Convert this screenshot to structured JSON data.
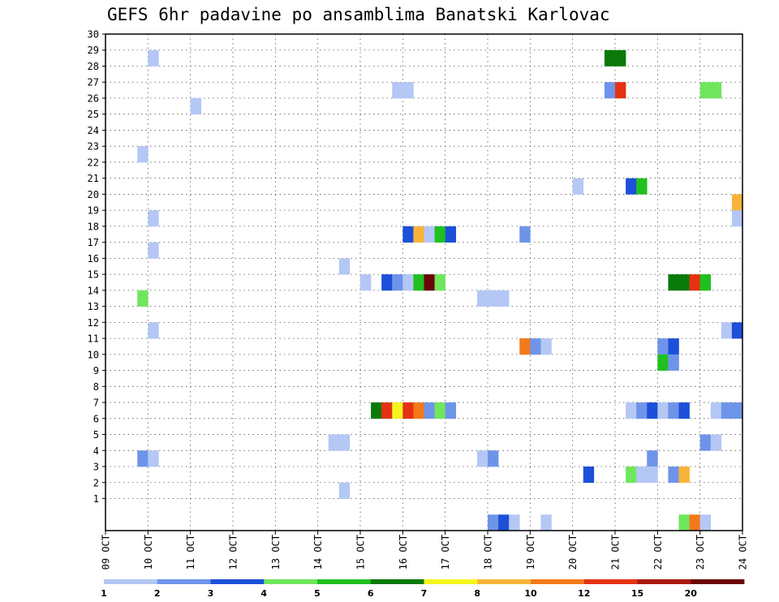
{
  "chart_data": {
    "type": "heatmap",
    "title": "GEFS 6hr padavine po ansamblima Banatski Karlovac",
    "xlabel": "",
    "ylabel": "",
    "x_tick_labels": [
      "09 OCT",
      "10 OCT",
      "11 OCT",
      "12 OCT",
      "13 OCT",
      "14 OCT",
      "15 OCT",
      "16 OCT",
      "17 OCT",
      "18 OCT",
      "19 OCT",
      "20 OCT",
      "21 OCT",
      "22 OCT",
      "23 OCT",
      "24 OCT"
    ],
    "xlim": [
      0,
      60
    ],
    "ylim": [
      0,
      30
    ],
    "y_tick_labels": [
      1,
      2,
      3,
      4,
      5,
      6,
      7,
      8,
      9,
      10,
      11,
      12,
      13,
      14,
      15,
      16,
      17,
      18,
      19,
      20,
      21,
      22,
      23,
      24,
      25,
      26,
      27,
      28,
      29,
      30
    ],
    "grid": true,
    "legend": {
      "position": "bottom",
      "thresholds": [
        1,
        2,
        3,
        4,
        5,
        6,
        7,
        8,
        10,
        12,
        15,
        20
      ],
      "colors": [
        "#b4c7f5",
        "#6e94ea",
        "#1c50d8",
        "#6fe65c",
        "#20c020",
        "#0a7a0a",
        "#f5f51e",
        "#f8b43a",
        "#f27a1a",
        "#e43212",
        "#aa1a12",
        "#6a0606"
      ]
    },
    "cells": [
      {
        "x": 4,
        "y": 30,
        "c": 0
      },
      {
        "x": 47,
        "y": 30,
        "c": 5
      },
      {
        "x": 48,
        "y": 30,
        "c": 5
      },
      {
        "x": 27,
        "y": 28,
        "c": 0
      },
      {
        "x": 28,
        "y": 28,
        "c": 0
      },
      {
        "x": 47,
        "y": 28,
        "c": 1
      },
      {
        "x": 48,
        "y": 28,
        "c": 9
      },
      {
        "x": 56,
        "y": 28,
        "c": 3
      },
      {
        "x": 57,
        "y": 28,
        "c": 3
      },
      {
        "x": 8,
        "y": 27,
        "c": 0
      },
      {
        "x": 3,
        "y": 24,
        "c": 0
      },
      {
        "x": 44,
        "y": 22,
        "c": 0
      },
      {
        "x": 49,
        "y": 22,
        "c": 2
      },
      {
        "x": 50,
        "y": 22,
        "c": 4
      },
      {
        "x": 59,
        "y": 21,
        "c": 7
      },
      {
        "x": 4,
        "y": 20,
        "c": 0
      },
      {
        "x": 59,
        "y": 20,
        "c": 0
      },
      {
        "x": 28,
        "y": 19,
        "c": 2
      },
      {
        "x": 29,
        "y": 19,
        "c": 7
      },
      {
        "x": 30,
        "y": 19,
        "c": 0
      },
      {
        "x": 31,
        "y": 19,
        "c": 4
      },
      {
        "x": 32,
        "y": 19,
        "c": 2
      },
      {
        "x": 39,
        "y": 19,
        "c": 1
      },
      {
        "x": 4,
        "y": 18,
        "c": 0
      },
      {
        "x": 22,
        "y": 17,
        "c": 0
      },
      {
        "x": 24,
        "y": 16,
        "c": 0
      },
      {
        "x": 26,
        "y": 16,
        "c": 2
      },
      {
        "x": 27,
        "y": 16,
        "c": 1
      },
      {
        "x": 28,
        "y": 16,
        "c": 0
      },
      {
        "x": 29,
        "y": 16,
        "c": 4
      },
      {
        "x": 30,
        "y": 16,
        "c": 11
      },
      {
        "x": 31,
        "y": 16,
        "c": 3
      },
      {
        "x": 53,
        "y": 16,
        "c": 5
      },
      {
        "x": 54,
        "y": 16,
        "c": 5
      },
      {
        "x": 55,
        "y": 16,
        "c": 9
      },
      {
        "x": 56,
        "y": 16,
        "c": 4
      },
      {
        "x": 3,
        "y": 15,
        "c": 3
      },
      {
        "x": 35,
        "y": 15,
        "c": 0
      },
      {
        "x": 36,
        "y": 15,
        "c": 0
      },
      {
        "x": 37,
        "y": 15,
        "c": 0
      },
      {
        "x": 4,
        "y": 13,
        "c": 0
      },
      {
        "x": 58,
        "y": 13,
        "c": 0
      },
      {
        "x": 59,
        "y": 13,
        "c": 2
      },
      {
        "x": 39,
        "y": 12,
        "c": 8
      },
      {
        "x": 40,
        "y": 12,
        "c": 1
      },
      {
        "x": 41,
        "y": 12,
        "c": 0
      },
      {
        "x": 52,
        "y": 12,
        "c": 1
      },
      {
        "x": 53,
        "y": 12,
        "c": 2
      },
      {
        "x": 52,
        "y": 11,
        "c": 4
      },
      {
        "x": 53,
        "y": 11,
        "c": 1
      },
      {
        "x": 53,
        "y": 8,
        "c": 0
      },
      {
        "x": 25,
        "y": 8,
        "c": 5
      },
      {
        "x": 26,
        "y": 8,
        "c": 9
      },
      {
        "x": 27,
        "y": 8,
        "c": 6
      },
      {
        "x": 28,
        "y": 8,
        "c": 9
      },
      {
        "x": 29,
        "y": 8,
        "c": 8
      },
      {
        "x": 30,
        "y": 8,
        "c": 1
      },
      {
        "x": 31,
        "y": 8,
        "c": 3
      },
      {
        "x": 32,
        "y": 8,
        "c": 1
      },
      {
        "x": 49,
        "y": 8,
        "c": 0
      },
      {
        "x": 50,
        "y": 8,
        "c": 1
      },
      {
        "x": 51,
        "y": 8,
        "c": 2
      },
      {
        "x": 52,
        "y": 8,
        "c": 0
      },
      {
        "x": 53,
        "y": 8,
        "c": 1
      },
      {
        "x": 54,
        "y": 8,
        "c": 2
      },
      {
        "x": 57,
        "y": 8,
        "c": 0
      },
      {
        "x": 58,
        "y": 8,
        "c": 1
      },
      {
        "x": 59,
        "y": 8,
        "c": 1
      },
      {
        "x": 21,
        "y": 6,
        "c": 0
      },
      {
        "x": 22,
        "y": 6,
        "c": 0
      },
      {
        "x": 56,
        "y": 6,
        "c": 1
      },
      {
        "x": 57,
        "y": 6,
        "c": 0
      },
      {
        "x": 3,
        "y": 5,
        "c": 1
      },
      {
        "x": 4,
        "y": 5,
        "c": 0
      },
      {
        "x": 35,
        "y": 5,
        "c": 0
      },
      {
        "x": 36,
        "y": 5,
        "c": 1
      },
      {
        "x": 51,
        "y": 5,
        "c": 1
      },
      {
        "x": 45,
        "y": 4,
        "c": 2
      },
      {
        "x": 49,
        "y": 4,
        "c": 3
      },
      {
        "x": 50,
        "y": 4,
        "c": 0
      },
      {
        "x": 51,
        "y": 4,
        "c": 0
      },
      {
        "x": 53,
        "y": 4,
        "c": 1
      },
      {
        "x": 54,
        "y": 4,
        "c": 7
      },
      {
        "x": 22,
        "y": 3,
        "c": 0
      },
      {
        "x": 36,
        "y": 1,
        "c": 1
      },
      {
        "x": 37,
        "y": 1,
        "c": 2
      },
      {
        "x": 38,
        "y": 1,
        "c": 0
      },
      {
        "x": 41,
        "y": 1,
        "c": 0
      },
      {
        "x": 54,
        "y": 1,
        "c": 3
      },
      {
        "x": 55,
        "y": 1,
        "c": 8
      },
      {
        "x": 56,
        "y": 1,
        "c": 0
      }
    ]
  }
}
